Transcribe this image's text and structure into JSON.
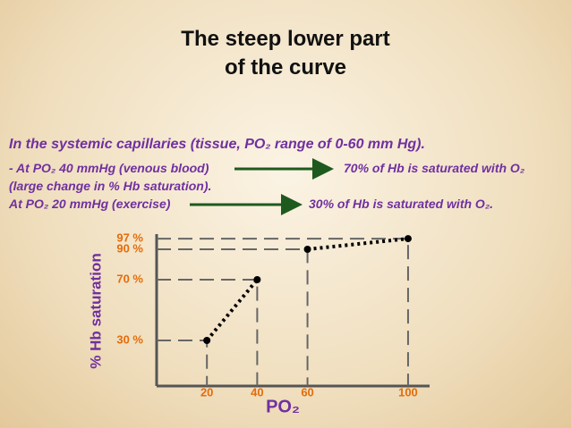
{
  "slide": {
    "title": [
      "The steep lower part",
      "of the curve"
    ],
    "lines": [
      "In the systemic capillaries (tissue, PO₂ range of 0-60 mm Hg).",
      "- At PO₂ 40 mmHg (venous blood)",
      "70% of Hb is saturated with O₂",
      "(large change in % Hb saturation).",
      "At PO₂ 20 mmHg (exercise)",
      "30% of Hb is saturated with O₂."
    ]
  },
  "chart_data": {
    "type": "line",
    "xlabel": "PO₂",
    "ylabel": "% Hb saturation",
    "xlim": [
      0,
      105
    ],
    "xticks": [
      20,
      40,
      60,
      100
    ],
    "ylim": [
      0,
      100
    ],
    "yticks": [
      {
        "value": 30,
        "label": "30 %"
      },
      {
        "value": 70,
        "label": "70 %"
      },
      {
        "value": 90,
        "label": "90 %"
      },
      {
        "value": 97,
        "label": "97 %"
      }
    ],
    "color": "#000000",
    "series": [
      {
        "x": [
          20,
          40
        ],
        "values": [
          30,
          70
        ]
      },
      {
        "x": [
          60,
          100
        ],
        "values": [
          90,
          97
        ]
      }
    ]
  }
}
